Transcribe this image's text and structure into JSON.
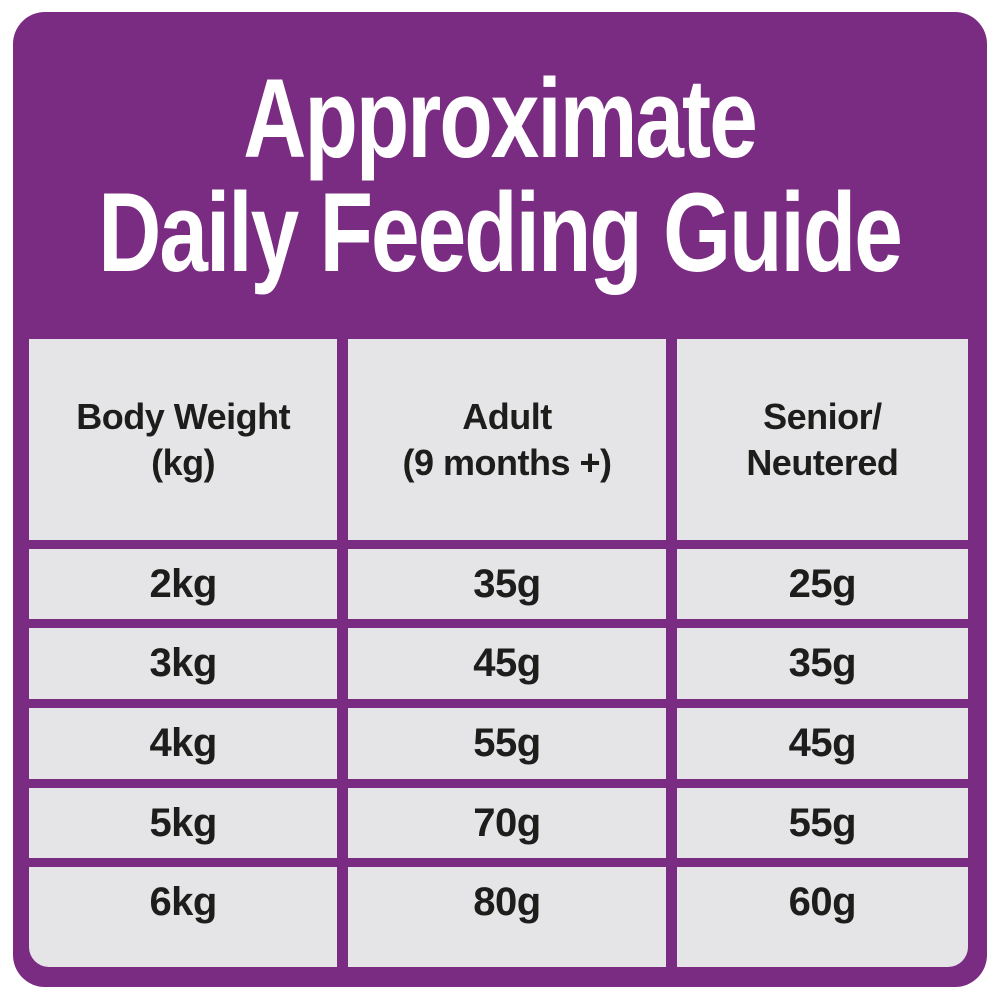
{
  "title": {
    "line1": "Approximate",
    "line2": "Daily Feeding Guide"
  },
  "table": {
    "headers": [
      {
        "line1": "Body Weight",
        "line2": "(kg)"
      },
      {
        "line1": "Adult",
        "line2": "(9 months +)"
      },
      {
        "line1": "Senior/",
        "line2": "Neutered"
      }
    ]
  },
  "chart_data": {
    "type": "table",
    "title": "Approximate Daily Feeding Guide",
    "columns": [
      "Body Weight (kg)",
      "Adult (9 months +)",
      "Senior/Neutered"
    ],
    "rows": [
      [
        "2kg",
        "35g",
        "25g"
      ],
      [
        "3kg",
        "45g",
        "35g"
      ],
      [
        "4kg",
        "55g",
        "45g"
      ],
      [
        "5kg",
        "70g",
        "55g"
      ],
      [
        "6kg",
        "80g",
        "60g"
      ]
    ]
  },
  "colors": {
    "panel_purple": "#7a2b82",
    "cell_gray": "#e5e4e7",
    "text_dark": "#1d1d1b",
    "title_white": "#ffffff"
  }
}
